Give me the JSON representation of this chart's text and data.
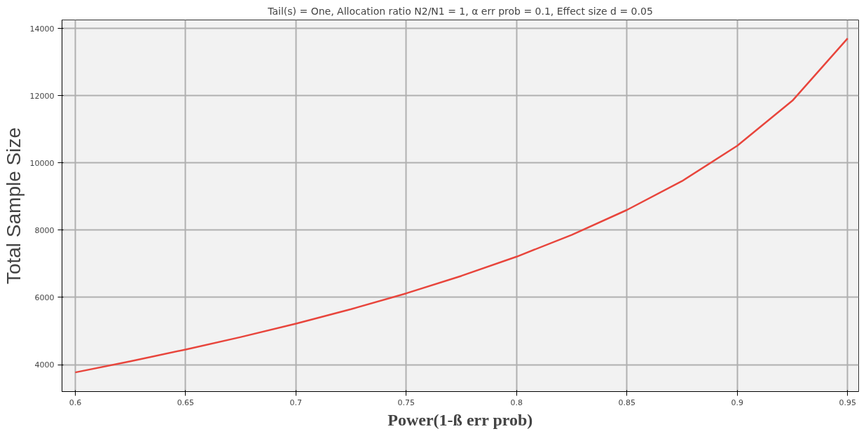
{
  "chart_data": {
    "type": "line",
    "subtitle": "Tail(s) = One, Allocation ratio N2/N1 = 1, α err prob = 0.1, Effect size d = 0.05",
    "xlabel": "Power(1-ß err prob)",
    "ylabel": "Total Sample Size",
    "x": [
      0.6,
      0.625,
      0.65,
      0.675,
      0.7,
      0.725,
      0.75,
      0.775,
      0.8,
      0.825,
      0.85,
      0.875,
      0.9,
      0.925,
      0.95
    ],
    "series": [
      {
        "color": "#e8453c",
        "values": [
          3770,
          4100,
          4450,
          4820,
          5220,
          5650,
          6120,
          6640,
          7210,
          7860,
          8600,
          9460,
          10510,
          11850,
          13700
        ]
      }
    ],
    "xlim": [
      0.594,
      0.955
    ],
    "ylim": [
      3200,
      14250
    ],
    "xticks": [
      0.6,
      0.65,
      0.7,
      0.75,
      0.8,
      0.85,
      0.9,
      0.95
    ],
    "yticks": [
      4000,
      6000,
      8000,
      10000,
      12000,
      14000
    ],
    "grid": true,
    "marker": "none",
    "line_style": "solid"
  }
}
